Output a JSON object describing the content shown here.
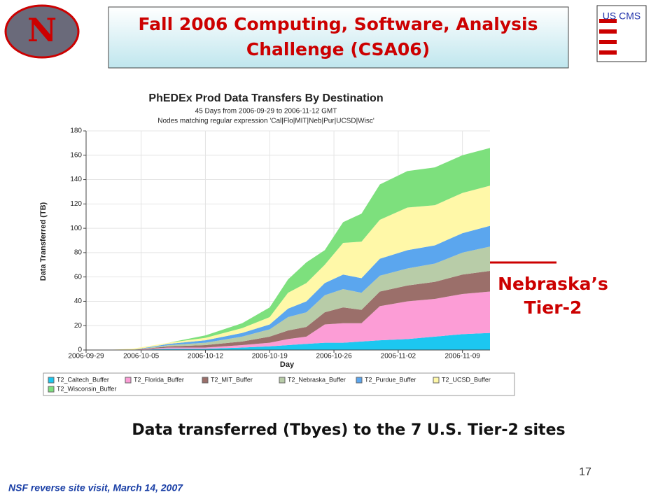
{
  "slide": {
    "title": [
      "Fall 2006 Computing, Software, Analysis",
      "Challenge (CSA06)"
    ],
    "logo_left": "N",
    "logo_right": "US CMS",
    "annotation": [
      "Nebraska’s",
      "Tier-2"
    ],
    "caption": "Data transferred (Tbyes) to the 7 U.S. Tier-2 sites",
    "page_number": "17",
    "footer": "NSF reverse site visit, March 14, 2007"
  },
  "chart_data": {
    "type": "stacked_area",
    "title": "PhEDEx Prod Data Transfers By Destination",
    "subtitle": [
      "45 Days from 2006-09-29 to 2006-11-12 GMT",
      "Nodes matching regular expression 'Cal|Flo|MIT|Neb|Pur|UCSD|Wisc'"
    ],
    "x_label": "Day",
    "y_label": "Data Transferred (TB)",
    "x": [
      "2006-10-01",
      "2006-10-04",
      "2006-10-08",
      "2006-10-12",
      "2006-10-16",
      "2006-10-19",
      "2006-10-21",
      "2006-10-23",
      "2006-10-25",
      "2006-10-27",
      "2006-10-29",
      "2006-10-31",
      "2006-11-03",
      "2006-11-06",
      "2006-11-09",
      "2006-11-12"
    ],
    "series": [
      {
        "name": "T2_Caltech_Buffer",
        "color": "#1cc7f0",
        "values": [
          0,
          0,
          1,
          1,
          2,
          3,
          4,
          5,
          6,
          6,
          7,
          8,
          9,
          11,
          13,
          14
        ]
      },
      {
        "name": "T2_Florida_Buffer",
        "color": "#fc9dd6",
        "values": [
          0,
          0,
          1,
          1,
          2,
          3,
          5,
          6,
          15,
          16,
          15,
          28,
          31,
          31,
          33,
          34
        ]
      },
      {
        "name": "T2_MIT_Buffer",
        "color": "#9b6f6a",
        "values": [
          0,
          0,
          1,
          2,
          3,
          5,
          7,
          8,
          10,
          13,
          11,
          12,
          13,
          14,
          16,
          17
        ]
      },
      {
        "name": "T2_Nebraska_Buffer",
        "color": "#b8cca8",
        "values": [
          0,
          0,
          1,
          2,
          4,
          6,
          11,
          12,
          14,
          15,
          14,
          13,
          14,
          15,
          18,
          20
        ]
      },
      {
        "name": "T2_Purdue_Buffer",
        "color": "#5ba6ee",
        "values": [
          0,
          0,
          1,
          2,
          3,
          4,
          7,
          9,
          10,
          12,
          12,
          14,
          15,
          15,
          16,
          17
        ]
      },
      {
        "name": "T2_UCSD_Buffer",
        "color": "#fff8a8",
        "values": [
          0,
          1,
          1,
          2,
          4,
          6,
          13,
          15,
          15,
          26,
          30,
          32,
          35,
          33,
          33,
          33
        ]
      },
      {
        "name": "T2_Wisconsin_Buffer",
        "color": "#7de07d",
        "values": [
          0,
          0,
          0,
          2,
          4,
          8,
          11,
          17,
          12,
          17,
          23,
          29,
          30,
          31,
          31,
          31
        ]
      }
    ],
    "xlim": [
      "2006-09-29",
      "2006-11-12"
    ],
    "xticks": [
      "2006-09-29",
      "2006-10-05",
      "2006-10-12",
      "2006-10-19",
      "2006-10-26",
      "2006-11-02",
      "2006-11-09"
    ],
    "ylim": [
      0,
      180
    ],
    "yticks": [
      0,
      20,
      40,
      60,
      80,
      100,
      120,
      140,
      160,
      180
    ],
    "grid": true
  }
}
